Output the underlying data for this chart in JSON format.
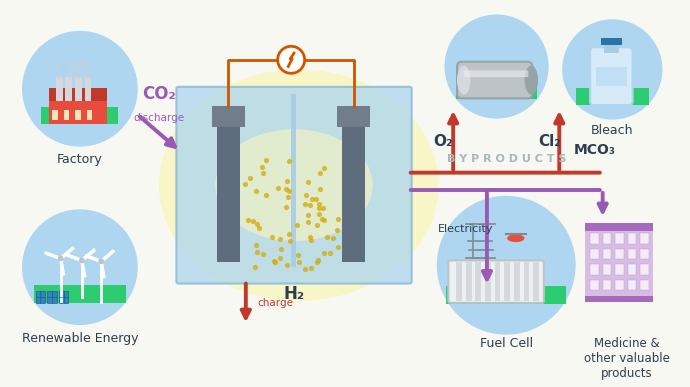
{
  "bg_color": "#f8f8f2",
  "labels": {
    "factory": "Factory",
    "renewable": "Renewable Energy",
    "fuel_cell": "Fuel Cell",
    "bleach": "Bleach",
    "byproducts": "B Y P R O D U C T S",
    "co2": "CO₂",
    "discharge": "discharge",
    "charge": "charge",
    "h2": "H₂",
    "o2": "O₂",
    "cl2": "Cl₂",
    "mco3": "MCO₃",
    "electricity": "Electricity",
    "medicine": "Medicine &\nother valuable\nproducts"
  },
  "colors": {
    "purple_arrow": "#9b59b6",
    "red_arrow": "#c0392b",
    "orange_wire": "#d35400",
    "blue_circle": "#aed6f1",
    "green_base": "#2ecc71",
    "battery_blue": "#a8d4f0",
    "battery_glow": "#f9f5c0",
    "text_dark": "#2c3e50",
    "byproducts_text": "#aab7b8",
    "electrode_dark": "#5d6d7e",
    "electrode_light": "#717d8a"
  }
}
